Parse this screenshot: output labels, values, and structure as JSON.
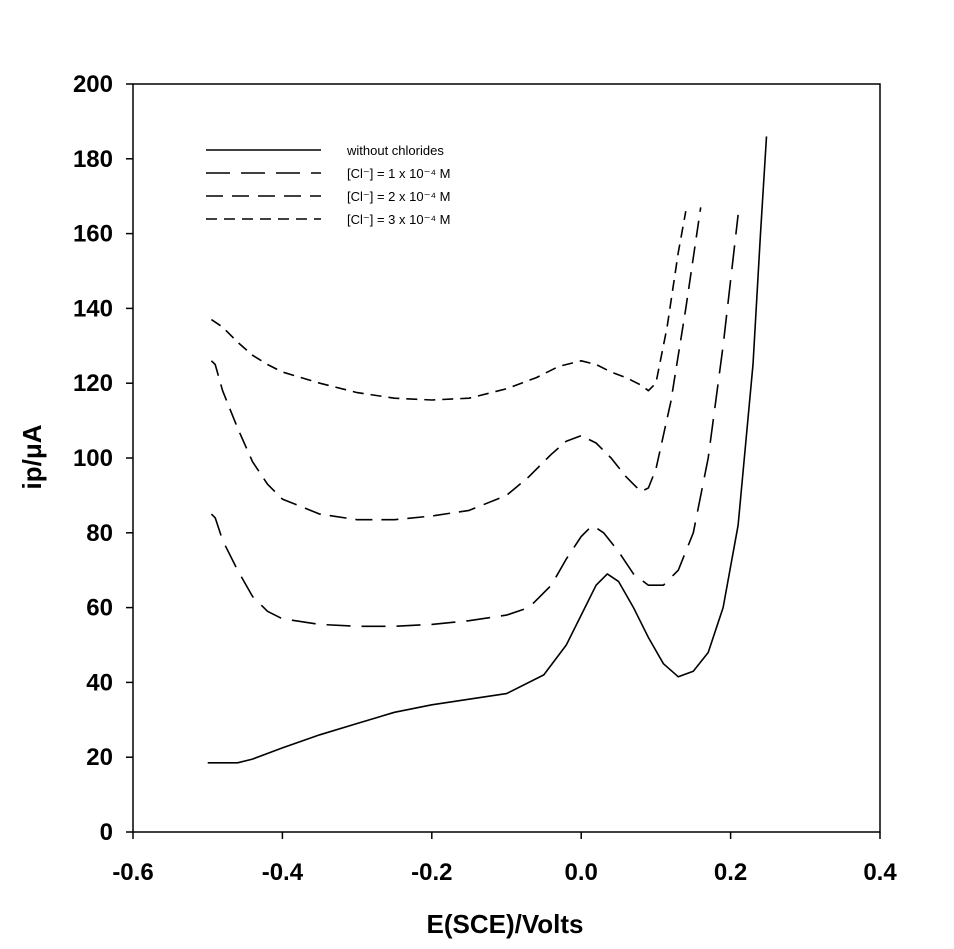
{
  "chart_data": {
    "type": "line",
    "title": "",
    "xlabel": "E(SCE)/Volts",
    "ylabel": "ip/μA",
    "xlim": [
      -0.6,
      0.4
    ],
    "ylim": [
      0,
      200
    ],
    "xticks": [
      -0.6,
      -0.4,
      -0.2,
      0.0,
      0.2,
      0.4
    ],
    "xtick_labels": [
      "-0.6",
      "-0.4",
      "-0.2",
      "0.0",
      "0.2",
      "0.4"
    ],
    "yticks": [
      0,
      20,
      40,
      60,
      80,
      100,
      120,
      140,
      160,
      180,
      200
    ],
    "ytick_labels": [
      "0",
      "20",
      "40",
      "60",
      "80",
      "100",
      "120",
      "140",
      "160",
      "180",
      "200"
    ],
    "grid": false,
    "legend_position": "top-left",
    "series": [
      {
        "name": "without chlorides",
        "style": "solid",
        "points": [
          [
            -0.5,
            18.5
          ],
          [
            -0.48,
            18.5
          ],
          [
            -0.46,
            18.5
          ],
          [
            -0.44,
            19.5
          ],
          [
            -0.4,
            22.5
          ],
          [
            -0.35,
            26
          ],
          [
            -0.3,
            29
          ],
          [
            -0.25,
            32
          ],
          [
            -0.2,
            34
          ],
          [
            -0.15,
            35.5
          ],
          [
            -0.1,
            37
          ],
          [
            -0.05,
            42
          ],
          [
            -0.02,
            50
          ],
          [
            0.0,
            58
          ],
          [
            0.02,
            66
          ],
          [
            0.035,
            69
          ],
          [
            0.05,
            67
          ],
          [
            0.07,
            60
          ],
          [
            0.09,
            52
          ],
          [
            0.11,
            45
          ],
          [
            0.13,
            41.5
          ],
          [
            0.15,
            43
          ],
          [
            0.17,
            48
          ],
          [
            0.19,
            60
          ],
          [
            0.21,
            82
          ],
          [
            0.23,
            125
          ],
          [
            0.24,
            160
          ],
          [
            0.248,
            186
          ]
        ]
      },
      {
        "name": "[Cl⁻] = 1 x 10⁻⁴ M",
        "style": "long-dash",
        "points": [
          [
            -0.495,
            85
          ],
          [
            -0.49,
            84
          ],
          [
            -0.48,
            78
          ],
          [
            -0.46,
            70
          ],
          [
            -0.44,
            63
          ],
          [
            -0.42,
            59
          ],
          [
            -0.4,
            57
          ],
          [
            -0.35,
            55.5
          ],
          [
            -0.3,
            55
          ],
          [
            -0.25,
            55
          ],
          [
            -0.2,
            55.5
          ],
          [
            -0.15,
            56.5
          ],
          [
            -0.1,
            58
          ],
          [
            -0.07,
            60
          ],
          [
            -0.04,
            66
          ],
          [
            -0.02,
            73
          ],
          [
            0.0,
            79
          ],
          [
            0.015,
            82
          ],
          [
            0.03,
            80
          ],
          [
            0.05,
            75
          ],
          [
            0.07,
            69
          ],
          [
            0.09,
            66
          ],
          [
            0.11,
            66
          ],
          [
            0.13,
            70
          ],
          [
            0.15,
            80
          ],
          [
            0.17,
            100
          ],
          [
            0.19,
            130
          ],
          [
            0.21,
            165
          ]
        ]
      },
      {
        "name": "[Cl⁻] = 2 x 10⁻⁴ M",
        "style": "medium-dash",
        "points": [
          [
            -0.495,
            126
          ],
          [
            -0.49,
            125
          ],
          [
            -0.48,
            118
          ],
          [
            -0.46,
            108
          ],
          [
            -0.44,
            99
          ],
          [
            -0.42,
            93
          ],
          [
            -0.4,
            89
          ],
          [
            -0.35,
            85
          ],
          [
            -0.3,
            83.5
          ],
          [
            -0.25,
            83.5
          ],
          [
            -0.2,
            84.5
          ],
          [
            -0.15,
            86
          ],
          [
            -0.1,
            90
          ],
          [
            -0.07,
            95
          ],
          [
            -0.04,
            101
          ],
          [
            -0.02,
            104.5
          ],
          [
            0.0,
            106
          ],
          [
            0.02,
            104
          ],
          [
            0.04,
            100
          ],
          [
            0.06,
            95
          ],
          [
            0.08,
            91
          ],
          [
            0.09,
            92
          ],
          [
            0.1,
            97
          ],
          [
            0.12,
            115
          ],
          [
            0.14,
            140
          ],
          [
            0.16,
            167
          ]
        ]
      },
      {
        "name": "[Cl⁻] = 3 x 10⁻⁴ M",
        "style": "short-dash",
        "points": [
          [
            -0.495,
            137
          ],
          [
            -0.48,
            135
          ],
          [
            -0.46,
            131
          ],
          [
            -0.44,
            127.5
          ],
          [
            -0.42,
            125
          ],
          [
            -0.4,
            123
          ],
          [
            -0.35,
            120
          ],
          [
            -0.3,
            117.5
          ],
          [
            -0.25,
            116
          ],
          [
            -0.2,
            115.5
          ],
          [
            -0.15,
            116
          ],
          [
            -0.1,
            118.5
          ],
          [
            -0.06,
            121.5
          ],
          [
            -0.03,
            124.5
          ],
          [
            0.0,
            126
          ],
          [
            0.02,
            125
          ],
          [
            0.04,
            123
          ],
          [
            0.06,
            121.5
          ],
          [
            0.08,
            119.5
          ],
          [
            0.09,
            118
          ],
          [
            0.1,
            120
          ],
          [
            0.115,
            135
          ],
          [
            0.13,
            155
          ],
          [
            0.14,
            166
          ]
        ]
      }
    ]
  }
}
